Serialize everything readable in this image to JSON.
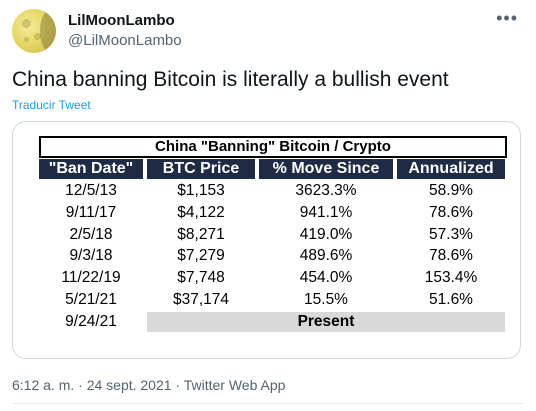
{
  "author": {
    "name": "LilMoonLambo",
    "handle": "@LilMoonLambo"
  },
  "more_icon": "more-horizontal-icon",
  "tweet": {
    "text": "China banning Bitcoin is literally a bullish event",
    "translate_label": "Traducir Tweet"
  },
  "table": {
    "title": "China \"Banning\" Bitcoin / Crypto",
    "headers": [
      "\"Ban Date\"",
      "BTC Price",
      "% Move Since",
      "Annualized"
    ],
    "rows": [
      [
        "12/5/13",
        "$1,153",
        "3623.3%",
        "58.9%"
      ],
      [
        "9/11/17",
        "$4,122",
        "941.1%",
        "78.6%"
      ],
      [
        "2/5/18",
        "$8,271",
        "419.0%",
        "57.3%"
      ],
      [
        "9/3/18",
        "$7,279",
        "489.6%",
        "78.6%"
      ],
      [
        "11/22/19",
        "$7,748",
        "454.0%",
        "153.4%"
      ],
      [
        "5/21/21",
        "$37,174",
        "15.5%",
        "51.6%"
      ]
    ],
    "last_date": "9/24/21",
    "present_label": "Present"
  },
  "meta": {
    "timestamp": "6:12 a. m. · 24 sept. 2021 · Twitter Web App"
  }
}
